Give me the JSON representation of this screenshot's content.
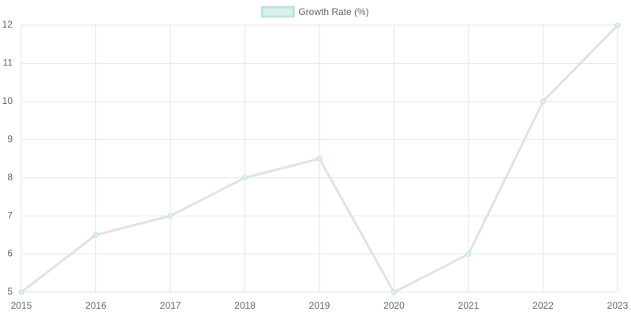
{
  "chart_data": {
    "type": "line",
    "categories": [
      "2015",
      "2016",
      "2017",
      "2018",
      "2019",
      "2020",
      "2021",
      "2022",
      "2023"
    ],
    "series": [
      {
        "name": "Growth Rate (%)",
        "color": "#e2e2e2",
        "fill": "#d9f2ef",
        "border": "#bfe3df",
        "values": [
          5,
          6.5,
          7,
          8,
          8.5,
          5,
          6,
          10,
          12
        ]
      }
    ],
    "ylim": [
      5,
      12
    ],
    "yticks": [
      5,
      6,
      7,
      8,
      9,
      10,
      11,
      12
    ],
    "grid": true,
    "legend": "top"
  }
}
